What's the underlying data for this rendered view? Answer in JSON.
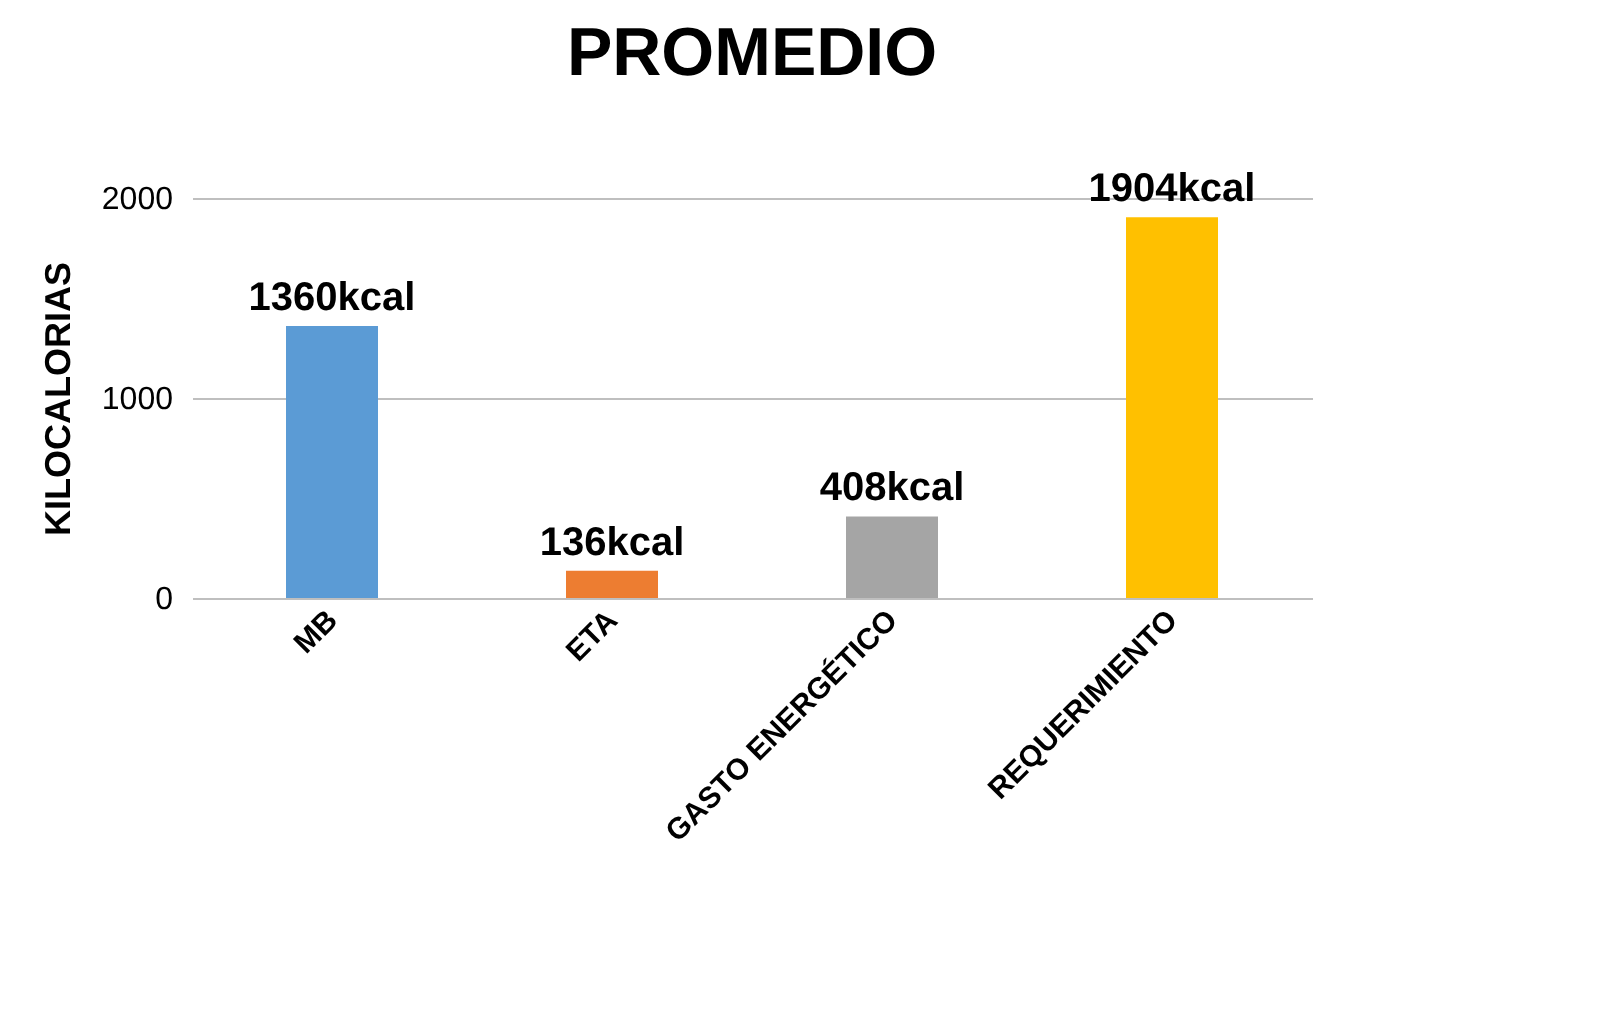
{
  "chart_data": {
    "type": "bar",
    "title": "PROMEDIO",
    "ylabel": "KILOCALORIAS",
    "categories": [
      "MB",
      "ETA",
      "GASTO ENERGÉTICO",
      "REQUERIMIENTO"
    ],
    "values": [
      1360,
      136,
      408,
      1904
    ],
    "colors": [
      "#5b9bd5",
      "#ed7d31",
      "#a5a5a5",
      "#ffc000"
    ],
    "value_labels": [
      "1360kcal",
      "136kcal",
      "408kcal",
      "1904kcal"
    ],
    "ylim": [
      0,
      2000
    ],
    "yticks": [
      0,
      1000,
      2000
    ],
    "grid": "y",
    "legend": false
  }
}
